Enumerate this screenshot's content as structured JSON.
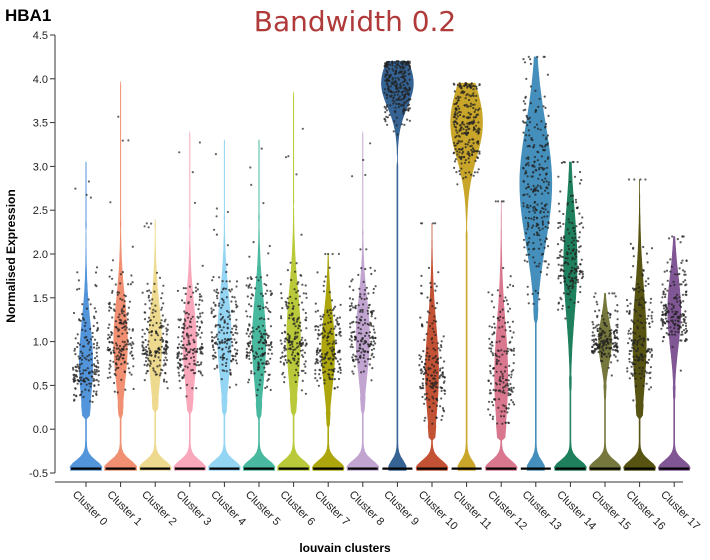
{
  "chart_data": {
    "type": "violin",
    "gene_label": "HBA1",
    "title": "Bandwidth 0.2",
    "xlabel": "louvain clusters",
    "ylabel": "Normalised Expression",
    "ylim": [
      -0.5,
      4.5
    ],
    "yticks": [
      -0.5,
      0.0,
      0.5,
      1.0,
      1.5,
      2.0,
      2.5,
      3.0,
      3.5,
      4.0,
      4.5
    ],
    "ytick_labels": [
      "-0.5",
      "0.0",
      "0.5",
      "1.0",
      "1.5",
      "2.0",
      "2.5",
      "3.0",
      "3.5",
      "4.0",
      "4.5"
    ],
    "grid": false,
    "legend": "none",
    "categories": [
      "Cluster 0",
      "Cluster 1",
      "Cluster 2",
      "Cluster 3",
      "Cluster 4",
      "Cluster 5",
      "Cluster 6",
      "Cluster 7",
      "Cluster 8",
      "Cluster 9",
      "Cluster 10",
      "Cluster 11",
      "Cluster 12",
      "Cluster 13",
      "Cluster 14",
      "Cluster 15",
      "Cluster 16",
      "Cluster 17"
    ],
    "series": [
      {
        "category": "Cluster 0",
        "color": "#4a90d9",
        "zero_mode": -0.45,
        "pos_mode": 0.75,
        "pos_min": 0.3,
        "pos_max": 2.3,
        "max": 3.05
      },
      {
        "category": "Cluster 1",
        "color": "#f08a6a",
        "zero_mode": -0.45,
        "pos_mode": 1.0,
        "pos_min": 0.3,
        "pos_max": 2.3,
        "max": 3.97
      },
      {
        "category": "Cluster 2",
        "color": "#eed98a",
        "zero_mode": -0.45,
        "pos_mode": 0.95,
        "pos_min": 0.35,
        "pos_max": 2.3,
        "max": 2.4
      },
      {
        "category": "Cluster 3",
        "color": "#f9a3b8",
        "zero_mode": -0.45,
        "pos_mode": 0.95,
        "pos_min": 0.35,
        "pos_max": 2.3,
        "max": 3.4
      },
      {
        "category": "Cluster 4",
        "color": "#8fd3f4",
        "zero_mode": -0.45,
        "pos_mode": 1.05,
        "pos_min": 0.35,
        "pos_max": 2.4,
        "max": 3.3
      },
      {
        "category": "Cluster 5",
        "color": "#3fb59a",
        "zero_mode": -0.45,
        "pos_mode": 1.0,
        "pos_min": 0.3,
        "pos_max": 2.4,
        "max": 3.3
      },
      {
        "category": "Cluster 6",
        "color": "#b6c72f",
        "zero_mode": -0.45,
        "pos_mode": 1.05,
        "pos_min": 0.35,
        "pos_max": 2.6,
        "max": 3.85
      },
      {
        "category": "Cluster 7",
        "color": "#a8a200",
        "zero_mode": -0.45,
        "pos_mode": 0.9,
        "pos_min": 0.2,
        "pos_max": 2.0,
        "max": 2.0
      },
      {
        "category": "Cluster 8",
        "color": "#bfa0cf",
        "zero_mode": -0.45,
        "pos_mode": 1.05,
        "pos_min": 0.35,
        "pos_max": 2.2,
        "max": 3.4
      },
      {
        "category": "Cluster 9",
        "color": "#2b5b8f",
        "zero_mode": -0.45,
        "pos_mode": 3.95,
        "pos_min": 3.05,
        "pos_max": 4.2,
        "max": 4.2
      },
      {
        "category": "Cluster 10",
        "color": "#c0492a",
        "zero_mode": -0.45,
        "pos_mode": 0.65,
        "pos_min": 0.05,
        "pos_max": 2.35,
        "max": 2.35
      },
      {
        "category": "Cluster 11",
        "color": "#c7a21f",
        "zero_mode": -0.45,
        "pos_mode": 3.5,
        "pos_min": 2.25,
        "pos_max": 3.95,
        "max": 3.95
      },
      {
        "category": "Cluster 12",
        "color": "#d87088",
        "zero_mode": -0.45,
        "pos_mode": 0.6,
        "pos_min": 0.05,
        "pos_max": 2.6,
        "max": 2.6
      },
      {
        "category": "Cluster 13",
        "color": "#3b8ab8",
        "zero_mode": -0.45,
        "pos_mode": 2.8,
        "pos_min": 1.4,
        "pos_max": 4.25,
        "max": 4.25
      },
      {
        "category": "Cluster 14",
        "color": "#147a55",
        "zero_mode": -0.45,
        "pos_mode": 1.9,
        "pos_min": 0.6,
        "pos_max": 3.05,
        "max": 3.05
      },
      {
        "category": "Cluster 15",
        "color": "#6e7032",
        "zero_mode": -0.45,
        "pos_mode": 1.0,
        "pos_min": 0.5,
        "pos_max": 1.55,
        "max": 1.55
      },
      {
        "category": "Cluster 16",
        "color": "#4f4a06",
        "zero_mode": -0.45,
        "pos_mode": 1.0,
        "pos_min": 0.3,
        "pos_max": 2.85,
        "max": 2.85
      },
      {
        "category": "Cluster 17",
        "color": "#7a4d8f",
        "zero_mode": -0.45,
        "pos_mode": 1.35,
        "pos_min": 0.5,
        "pos_max": 2.2,
        "max": 2.2
      }
    ]
  }
}
